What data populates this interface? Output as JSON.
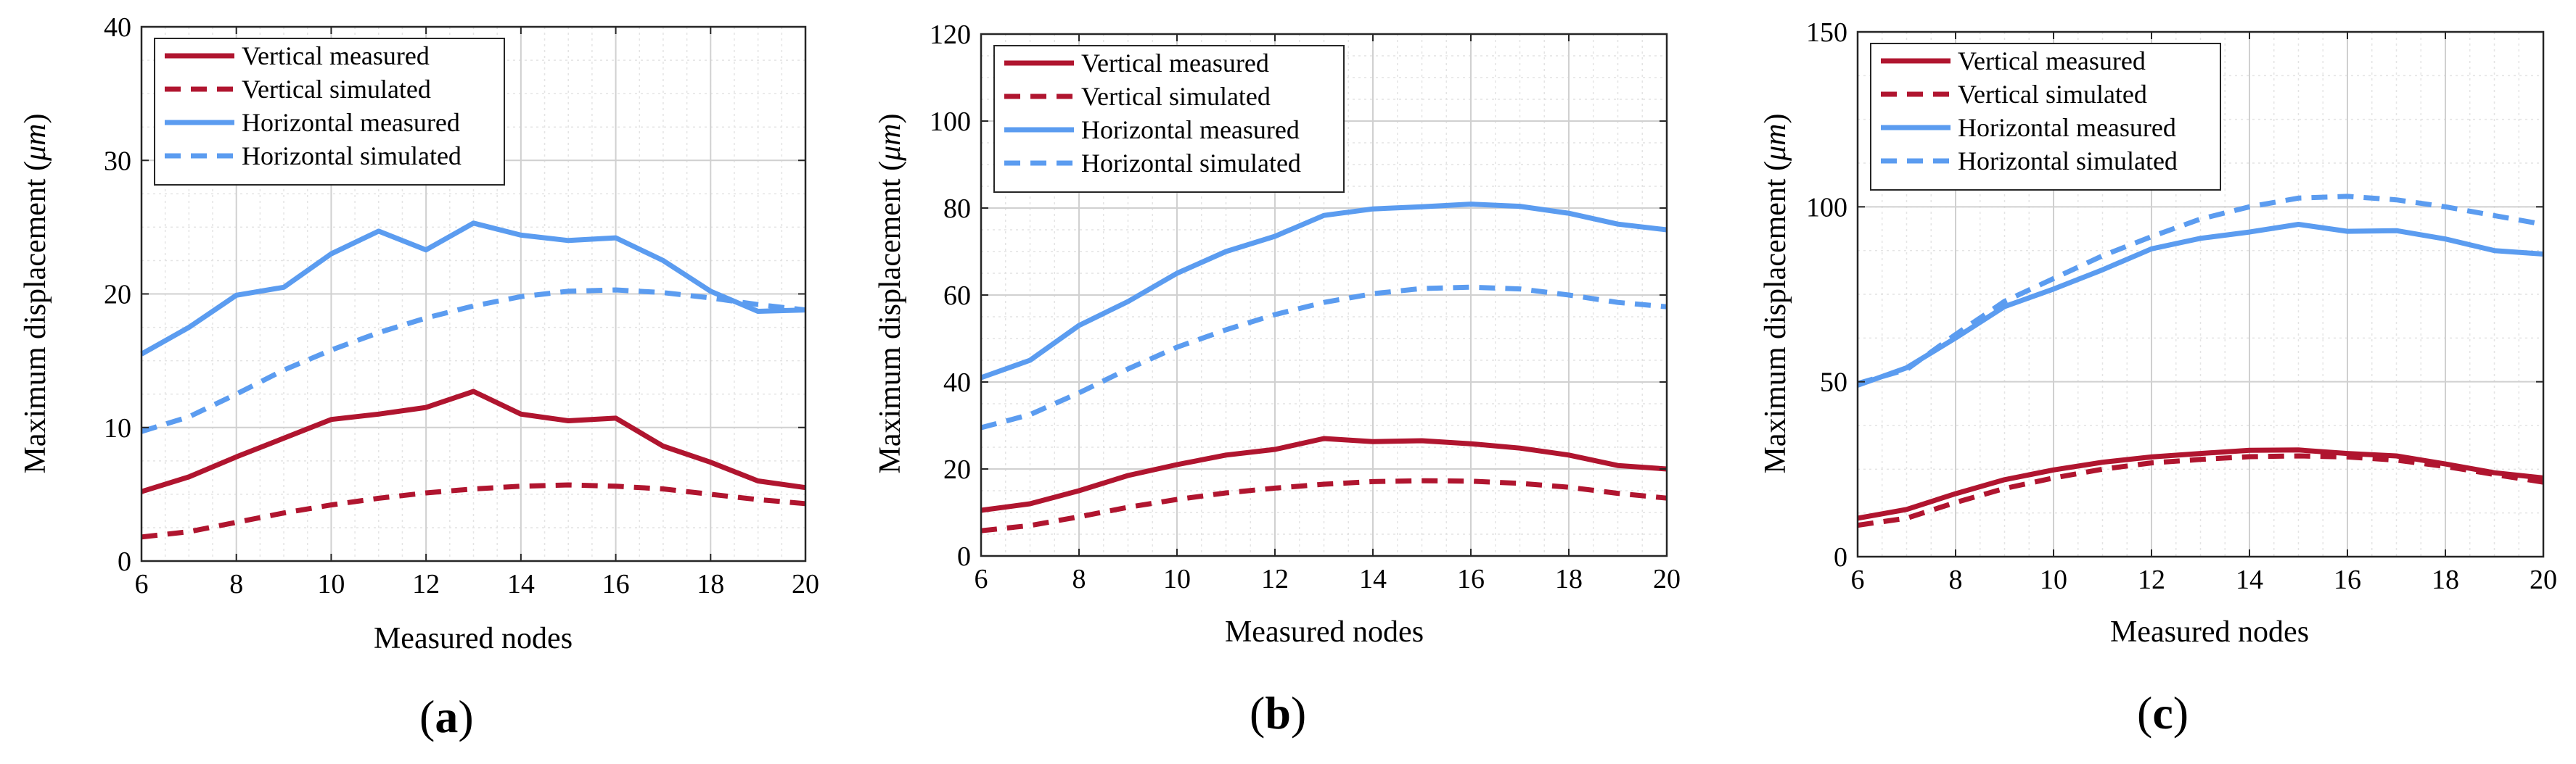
{
  "colors": {
    "vertical": "#b0152f",
    "horizontal": "#5b9cf0",
    "grid": "#d0d0d0",
    "axis": "#262626"
  },
  "chart_data": [
    {
      "panel_label": "a",
      "type": "line",
      "xlabel": "Measured nodes",
      "ylabel": "Maximum displacement (μm)",
      "ylabel_text": "Maximum displacement (",
      "ylabel_mu": "μm",
      "ylabel_close": ")",
      "xlim": [
        6,
        20
      ],
      "ylim": [
        0,
        40
      ],
      "x_ticks": [
        6,
        8,
        10,
        12,
        14,
        16,
        18,
        20
      ],
      "y_ticks": [
        0,
        10,
        20,
        30,
        40
      ],
      "grid": true,
      "legend_position": "top-left",
      "x": [
        6,
        7,
        8,
        9,
        10,
        11,
        12,
        13,
        14,
        15,
        16,
        17,
        18,
        19,
        20
      ],
      "series": [
        {
          "name": "Vertical measured",
          "color_key": "vertical",
          "dashed": false,
          "values": [
            5.2,
            6.3,
            7.8,
            9.2,
            10.6,
            11.0,
            11.5,
            12.7,
            11.0,
            10.5,
            10.7,
            8.6,
            7.4,
            6.0,
            5.5
          ]
        },
        {
          "name": "Vertical simulated",
          "color_key": "vertical",
          "dashed": true,
          "values": [
            1.8,
            2.2,
            2.9,
            3.6,
            4.2,
            4.7,
            5.1,
            5.4,
            5.6,
            5.7,
            5.6,
            5.4,
            5.0,
            4.6,
            4.3
          ]
        },
        {
          "name": "Horizontal measured",
          "color_key": "horizontal",
          "dashed": false,
          "values": [
            15.5,
            17.5,
            19.9,
            20.5,
            23.0,
            24.7,
            23.3,
            25.3,
            24.4,
            24.0,
            24.2,
            22.5,
            20.2,
            18.7,
            18.8
          ]
        },
        {
          "name": "Horizontal simulated",
          "color_key": "horizontal",
          "dashed": true,
          "values": [
            9.7,
            10.8,
            12.5,
            14.3,
            15.8,
            17.1,
            18.2,
            19.1,
            19.8,
            20.2,
            20.3,
            20.1,
            19.7,
            19.2,
            18.8
          ]
        }
      ]
    },
    {
      "panel_label": "b",
      "type": "line",
      "xlabel": "Measured nodes",
      "ylabel": "Maximum displacement (μm)",
      "ylabel_text": "Maximum displacement (",
      "ylabel_mu": "μm",
      "ylabel_close": ")",
      "xlim": [
        6,
        20
      ],
      "ylim": [
        0,
        120
      ],
      "x_ticks": [
        6,
        8,
        10,
        12,
        14,
        16,
        18,
        20
      ],
      "y_ticks": [
        0,
        20,
        40,
        60,
        80,
        100,
        120
      ],
      "grid": true,
      "legend_position": "top-left",
      "x": [
        6,
        7,
        8,
        9,
        10,
        11,
        12,
        13,
        14,
        15,
        16,
        17,
        18,
        19,
        20
      ],
      "series": [
        {
          "name": "Vertical measured",
          "color_key": "vertical",
          "dashed": false,
          "values": [
            10.5,
            12.0,
            15.0,
            18.5,
            21.0,
            23.2,
            24.5,
            27.0,
            26.3,
            26.5,
            25.8,
            24.8,
            23.2,
            20.8,
            20.0
          ]
        },
        {
          "name": "Vertical simulated",
          "color_key": "vertical",
          "dashed": true,
          "values": [
            5.8,
            7.0,
            9.0,
            11.2,
            13.0,
            14.5,
            15.6,
            16.5,
            17.1,
            17.3,
            17.2,
            16.7,
            15.8,
            14.4,
            13.3
          ]
        },
        {
          "name": "Horizontal measured",
          "color_key": "horizontal",
          "dashed": false,
          "values": [
            41.0,
            45.0,
            53.0,
            58.5,
            65.0,
            70.0,
            73.5,
            78.3,
            79.8,
            80.3,
            80.9,
            80.4,
            78.8,
            76.3,
            75.0
          ]
        },
        {
          "name": "Horizontal simulated",
          "color_key": "horizontal",
          "dashed": true,
          "values": [
            29.5,
            32.5,
            37.5,
            43.0,
            48.0,
            52.0,
            55.5,
            58.3,
            60.3,
            61.5,
            61.8,
            61.4,
            60.0,
            58.3,
            57.3
          ]
        }
      ]
    },
    {
      "panel_label": "c",
      "type": "line",
      "xlabel": "Measured nodes",
      "ylabel": "Maximum displacement (μm)",
      "ylabel_text": "Maximum displacement (",
      "ylabel_mu": "μm",
      "ylabel_close": ")",
      "xlim": [
        6,
        20
      ],
      "ylim": [
        0,
        150
      ],
      "x_ticks": [
        6,
        8,
        10,
        12,
        14,
        16,
        18,
        20
      ],
      "y_ticks": [
        0,
        50,
        100,
        150
      ],
      "grid": true,
      "legend_position": "top-left",
      "x": [
        6,
        7,
        8,
        9,
        10,
        11,
        12,
        13,
        14,
        15,
        16,
        17,
        18,
        19,
        20
      ],
      "series": [
        {
          "name": "Vertical measured",
          "color_key": "vertical",
          "dashed": false,
          "values": [
            11.0,
            13.5,
            18.0,
            22.0,
            24.8,
            27.0,
            28.5,
            29.5,
            30.4,
            30.5,
            29.5,
            28.8,
            26.5,
            24.0,
            22.5
          ]
        },
        {
          "name": "Vertical simulated",
          "color_key": "vertical",
          "dashed": true,
          "values": [
            9.0,
            11.0,
            15.5,
            19.5,
            22.5,
            25.0,
            26.8,
            27.8,
            28.6,
            28.8,
            28.5,
            27.6,
            25.8,
            23.5,
            21.3
          ]
        },
        {
          "name": "Horizontal measured",
          "color_key": "horizontal",
          "dashed": false,
          "values": [
            49.0,
            54.0,
            62.5,
            71.5,
            76.5,
            82.0,
            88.0,
            91.0,
            92.8,
            95.0,
            93.0,
            93.2,
            90.8,
            87.5,
            86.5
          ]
        },
        {
          "name": "Horizontal simulated",
          "color_key": "horizontal",
          "dashed": true,
          "values": [
            49.5,
            53.5,
            63.5,
            73.0,
            79.5,
            86.0,
            91.5,
            96.5,
            100.0,
            102.5,
            103.0,
            102.0,
            100.0,
            97.5,
            95.0
          ]
        }
      ]
    }
  ]
}
